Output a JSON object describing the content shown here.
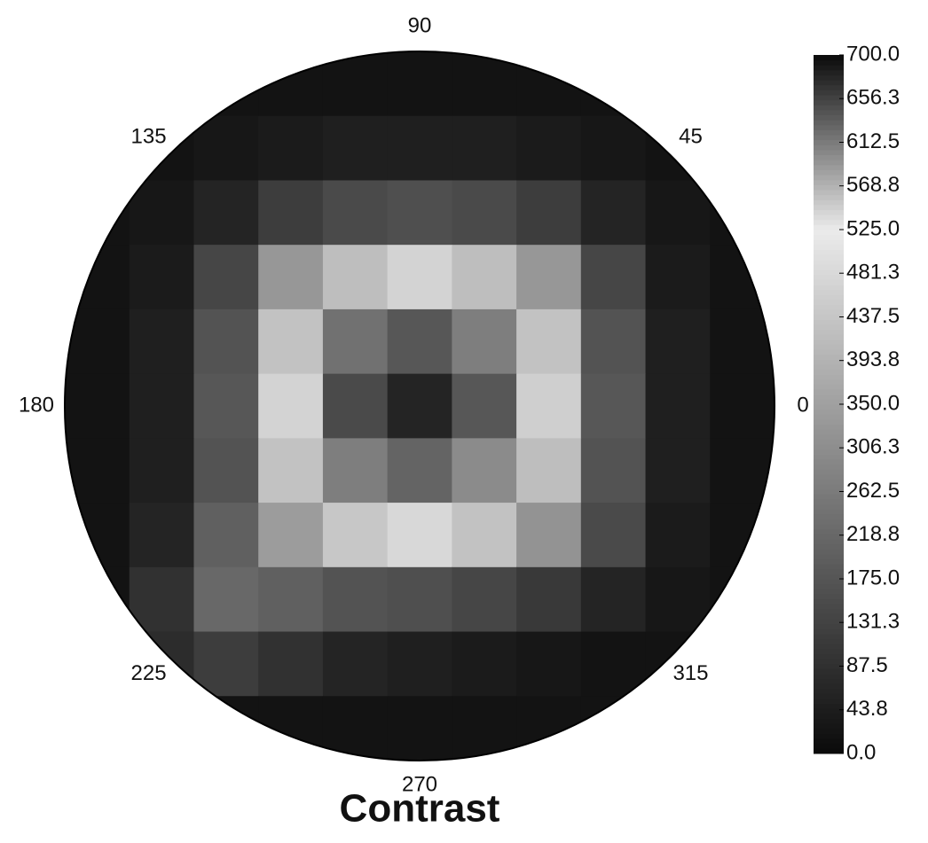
{
  "chart_data": {
    "type": "polar-heatmap",
    "title": "Contrast",
    "thetaticks": [
      0,
      45,
      90,
      135,
      180,
      225,
      270,
      315
    ],
    "z": [
      [
        20,
        20,
        20,
        20,
        20,
        20,
        20,
        20,
        20,
        20,
        20
      ],
      [
        20,
        20,
        30,
        40,
        50,
        50,
        50,
        40,
        30,
        20,
        20
      ],
      [
        20,
        30,
        60,
        120,
        150,
        160,
        150,
        120,
        60,
        30,
        20
      ],
      [
        20,
        40,
        140,
        330,
        420,
        470,
        420,
        330,
        140,
        40,
        20
      ],
      [
        20,
        50,
        170,
        430,
        620,
        640,
        610,
        430,
        170,
        50,
        20
      ],
      [
        20,
        50,
        180,
        470,
        650,
        680,
        640,
        460,
        180,
        50,
        20
      ],
      [
        20,
        50,
        170,
        430,
        610,
        630,
        600,
        420,
        170,
        50,
        20
      ],
      [
        20,
        60,
        200,
        340,
        440,
        480,
        430,
        320,
        150,
        40,
        20
      ],
      [
        20,
        90,
        220,
        200,
        170,
        160,
        140,
        110,
        60,
        30,
        20
      ],
      [
        20,
        80,
        120,
        90,
        60,
        50,
        40,
        30,
        20,
        20,
        20
      ],
      [
        20,
        20,
        20,
        20,
        20,
        20,
        20,
        20,
        20,
        20,
        20
      ]
    ],
    "zlim": [
      0,
      700
    ],
    "zbreak": 525,
    "zticks": [
      {
        "value": 700,
        "label": "700.0"
      },
      656.3,
      612.5,
      568.8,
      {
        "value": 525,
        "label": "525.0"
      },
      481.3,
      437.5,
      393.8,
      {
        "value": 350,
        "label": "350.0"
      },
      306.3,
      262.5,
      218.8,
      {
        "value": 175,
        "label": "175.0"
      },
      131.3,
      87.5,
      43.8,
      {
        "value": 0,
        "label": "0.0"
      }
    ]
  }
}
